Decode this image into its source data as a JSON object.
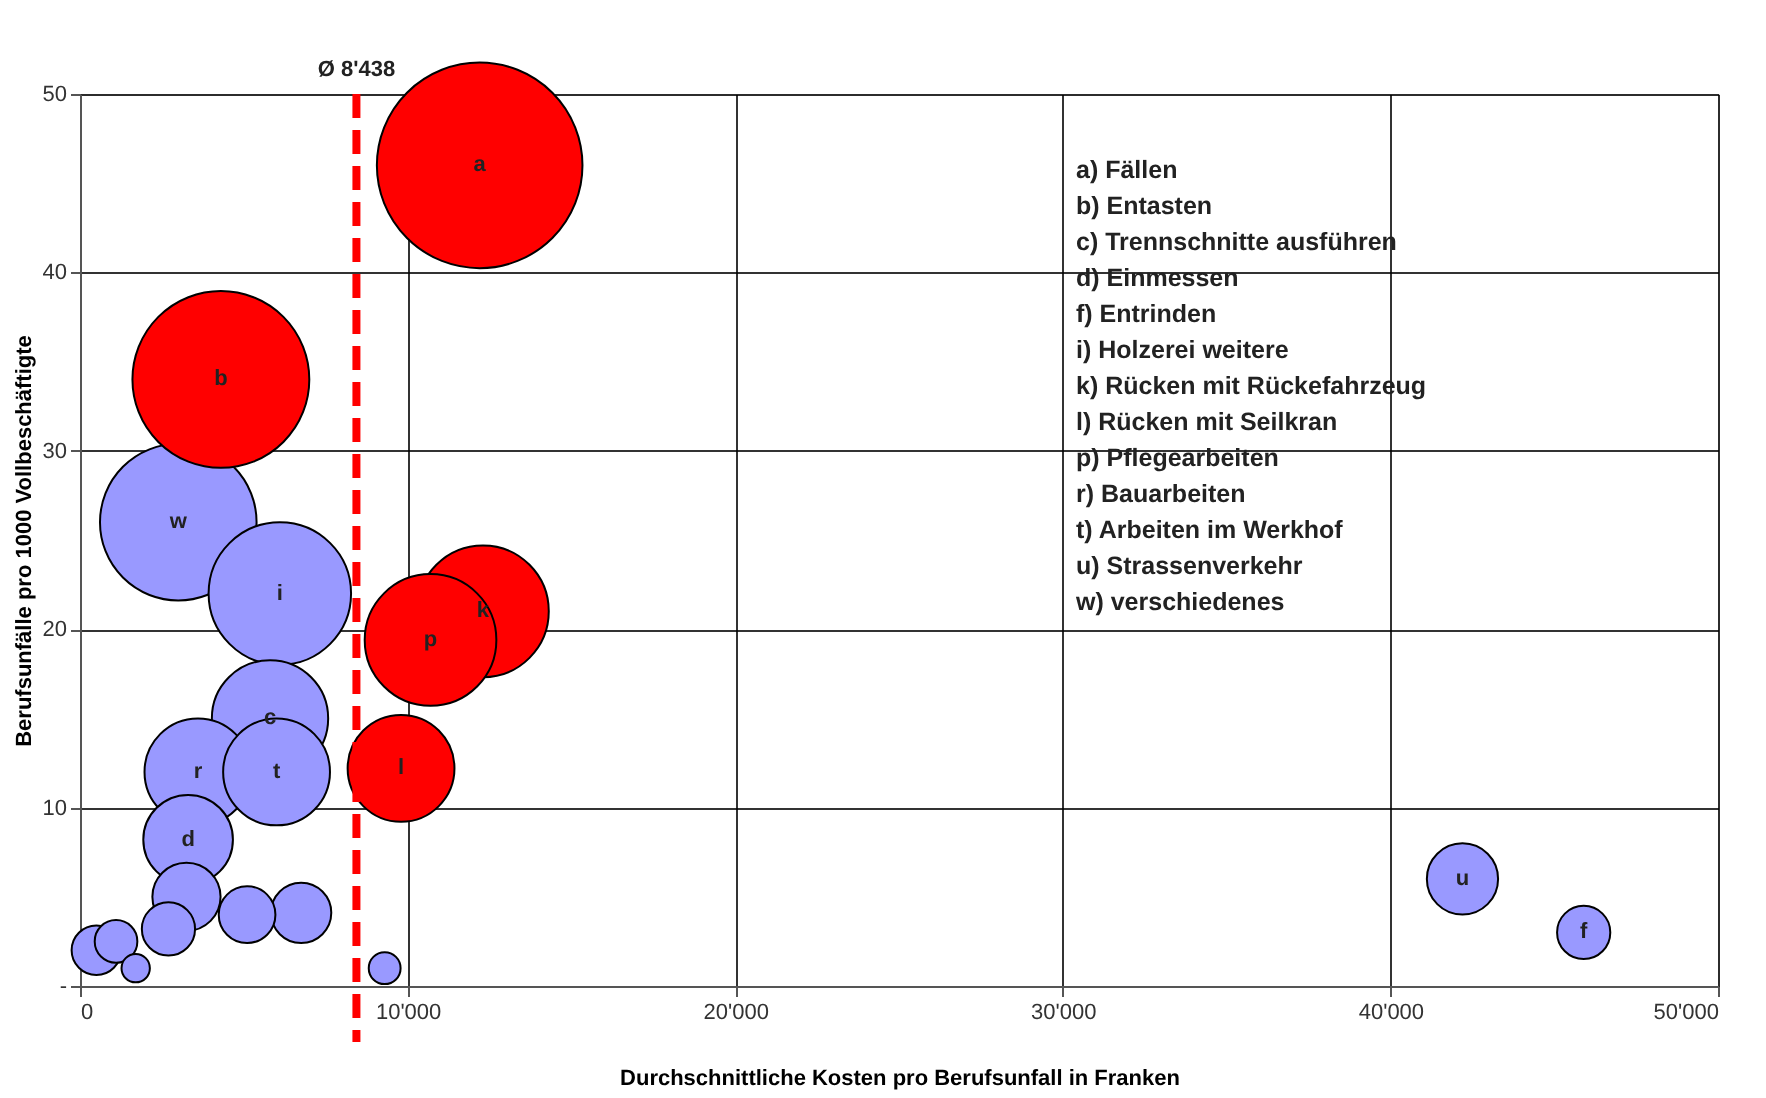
{
  "chart_data": {
    "type": "bubble",
    "xlabel": "Durchschnittliche Kosten pro Berufsunfall in Franken",
    "ylabel": "Berufsunfälle pro 1000 Vollbeschäftigte",
    "xlim": [
      0,
      50000
    ],
    "ylim": [
      0,
      50
    ],
    "xticks": [
      0,
      {
        "value": 10000,
        "label": "10'000"
      },
      {
        "value": 20000,
        "label": "20'000"
      },
      {
        "value": 30000,
        "label": "30'000"
      },
      {
        "value": 40000,
        "label": "40'000"
      },
      {
        "value": 50000,
        "label": "50'000"
      }
    ],
    "yticks": [
      {
        "value": 0,
        "label": "-"
      },
      10,
      20,
      30,
      40,
      50
    ],
    "grid": true,
    "series": [
      {
        "color": "#9999ff",
        "x": [
          3000,
          6100,
          5800,
          3600,
          6000,
          3300,
          3250,
          2700,
          5100,
          6750,
          1100,
          500,
          1700,
          9300,
          42200,
          45900
        ],
        "values": [
          26,
          22,
          15,
          12,
          12,
          8.2,
          5,
          3.2,
          4,
          4.1,
          2.5,
          2,
          1,
          1,
          6,
          3
        ],
        "sizes": [
          0.58,
          0.48,
          0.32,
          0.27,
          0.27,
          0.19,
          0.11,
          0.067,
          0.076,
          0.086,
          0.043,
          0.058,
          0.019,
          0.024,
          0.12,
          0.067
        ]
      },
      {
        "color": "#ff0000",
        "x": [
          12200,
          4300,
          12300,
          10700,
          9800
        ],
        "values": [
          46,
          34,
          21,
          19.4,
          12.2
        ],
        "sizes": [
          1,
          0.74,
          0.41,
          0.41,
          0.27
        ]
      }
    ],
    "ref_lines": [
      {
        "axis": "x",
        "value": 8438,
        "label": "Ø 8'438",
        "color": "#ff0000",
        "line_style": "dashed"
      }
    ],
    "annotations": [
      {
        "text": "a",
        "x": 12200,
        "y": 46
      },
      {
        "text": "b",
        "x": 4300,
        "y": 34
      },
      {
        "text": "w",
        "x": 3000,
        "y": 26
      },
      {
        "text": "i",
        "x": 6100,
        "y": 22
      },
      {
        "text": "k",
        "x": 12300,
        "y": 21
      },
      {
        "text": "p",
        "x": 10700,
        "y": 19.4
      },
      {
        "text": "c",
        "x": 5800,
        "y": 15
      },
      {
        "text": "r",
        "x": 3600,
        "y": 12
      },
      {
        "text": "t",
        "x": 6000,
        "y": 12
      },
      {
        "text": "l",
        "x": 9800,
        "y": 12.2
      },
      {
        "text": "d",
        "x": 3300,
        "y": 8.2
      },
      {
        "text": "u",
        "x": 42200,
        "y": 6
      },
      {
        "text": "f",
        "x": 45900,
        "y": 3
      },
      "a)  Fällen",
      "b)  Entasten",
      "c)  Trennschnitte ausführen",
      "d)  Einmessen",
      "f)   Entrinden",
      "i)   Holzerei weitere",
      "k)  Rücken mit Rückefahrzeug",
      "l)   Rücken mit Seilkran",
      "p)  Pflegearbeiten",
      "r)   Bauarbeiten",
      "t)   Arbeiten im Werkhof",
      "u)  Strassenverkehr",
      "w)  verschiedenes"
    ]
  }
}
